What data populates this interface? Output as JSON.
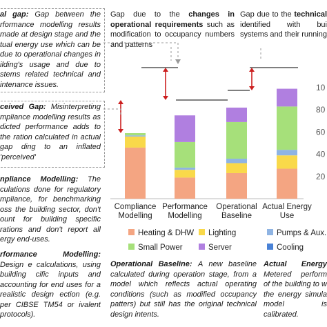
{
  "annotations": {
    "actual_gap": {
      "lead": "al gap:",
      "text": "Gap between the rformance modelling results made at design stage and the tual energy use which can be due to operational changes in ilding's usage and due to stems related technical and intenance issues."
    },
    "operational_requirements": {
      "lead": "Gap due to the",
      "emph": "changes in operational requirements",
      "text": "such as modification to occupancy numbers and patterns"
    },
    "technical": {
      "lead": "Gap due to the",
      "emph": "technical",
      "text": "identified with bui systems and their running"
    },
    "perceived_gap": {
      "lead": "ceived Gap:",
      "text": "Misinterpreting mpliance modelling results as dicted performance adds to the ration calculated in actual gap ding to an inflated 'perceived'"
    },
    "compliance_modelling": {
      "lead": "npliance Modelling:",
      "text": "The culations done for regulatory mpliance, for benchmarking oss the building sector, don't ount for building specific rations and don't report all ergy end-uses."
    },
    "performance_modelling": {
      "lead": "rformance Modelling:",
      "text": "Design e calculations, using building cific inputs and accounting for end uses for a realistic design ection (e.g. per CIBSE TM54 or ivalent protocols)."
    },
    "operational_baseline": {
      "lead": "Operational Baseline:",
      "text": "A new baseline calculated during operation stage, from a model which reflects actual operating conditions (such as modified occupancy patters) but still has the original technical design intents."
    },
    "actual_energy": {
      "lead": "Actual Energy",
      "text": "Metered perform of the building to w the energy simula model is calibrated."
    }
  },
  "chart_data": {
    "type": "bar",
    "stacked": true,
    "categories": [
      "Compliance\nModelling",
      "Performance\nModelling",
      "Operational\nBaseline",
      "Actual Energy\nUse"
    ],
    "y_ticks": [
      "20",
      "40",
      "60",
      "80",
      "10"
    ],
    "ylim": [
      0,
      100
    ],
    "series": [
      {
        "name": "Heating & DHW",
        "color": "#f4a582",
        "values": [
          46,
          19,
          23,
          27
        ]
      },
      {
        "name": "Lighting",
        "color": "#f9d94a",
        "values": [
          10,
          7,
          9,
          12
        ]
      },
      {
        "name": "Pumps & Aux.",
        "color": "#8fb4e3",
        "values": [
          1,
          2,
          4,
          5
        ]
      },
      {
        "name": "Small Power",
        "color": "#a6e07a",
        "values": [
          2,
          23,
          33,
          39
        ]
      },
      {
        "name": "Server",
        "color": "#b07fe0",
        "values": [
          0,
          24,
          13,
          16
        ]
      },
      {
        "name": "Cooling",
        "color": "#4a82d6",
        "values": [
          0,
          0,
          0,
          0
        ]
      }
    ],
    "legend": [
      {
        "name": "Heating & DHW",
        "color": "#f4a582"
      },
      {
        "name": "Lighting",
        "color": "#f9d94a"
      },
      {
        "name": "Pumps & Aux.",
        "color": "#8fb4e3"
      },
      {
        "name": "Small Power",
        "color": "#a6e07a"
      },
      {
        "name": "Server",
        "color": "#b07fe0"
      },
      {
        "name": "Cooling",
        "color": "#4a82d6"
      }
    ],
    "legend_position": "bottom",
    "grid": false
  }
}
